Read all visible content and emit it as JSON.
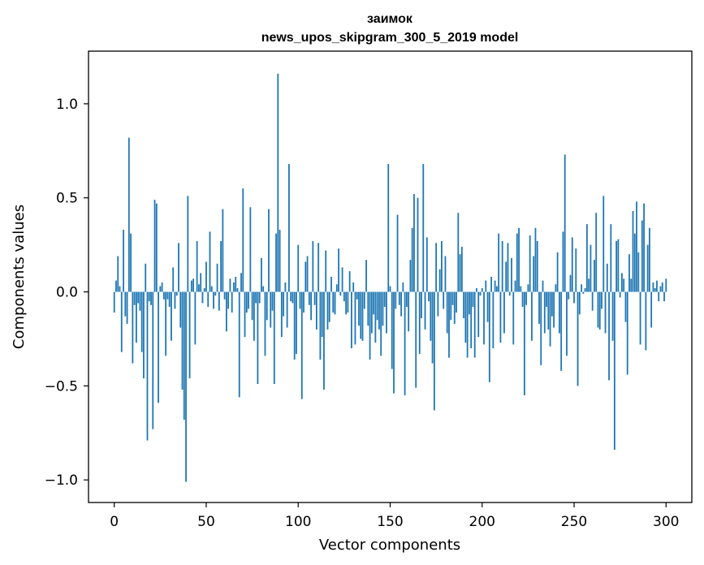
{
  "chart_data": {
    "type": "bar",
    "title": "заимок",
    "subtitle": "news_upos_skipgram_300_5_2019 model",
    "xlabel": "Vector components",
    "ylabel": "Components values",
    "xlim": [
      -14,
      314
    ],
    "ylim": [
      -1.12,
      1.28
    ],
    "xticks": [
      0,
      50,
      100,
      150,
      200,
      250,
      300
    ],
    "xtick_labels": [
      "0",
      "50",
      "100",
      "150",
      "200",
      "250",
      "300"
    ],
    "yticks": [
      -1.0,
      -0.5,
      0.0,
      0.5,
      1.0
    ],
    "ytick_labels": [
      "−1.0",
      "−0.5",
      "0.0",
      "0.5",
      "1.0"
    ],
    "bar_color": "#1f77b4",
    "grid": false,
    "series": [
      {
        "name": "components",
        "values": [
          -0.11,
          0.06,
          0.19,
          0.03,
          -0.32,
          0.33,
          -0.13,
          -0.17,
          0.82,
          0.31,
          -0.38,
          -0.07,
          -0.27,
          -0.06,
          -0.1,
          -0.32,
          -0.46,
          0.15,
          -0.79,
          -0.05,
          -0.07,
          -0.73,
          0.49,
          0.47,
          -0.59,
          0.03,
          0.05,
          -0.04,
          -0.34,
          -0.04,
          -0.08,
          -0.26,
          0.13,
          -0.09,
          -0.02,
          0.26,
          -0.19,
          -0.52,
          -0.68,
          -1.01,
          0.51,
          -0.46,
          0.06,
          0.07,
          -0.28,
          0.27,
          0.04,
          0.1,
          -0.06,
          0.02,
          0.16,
          -0.08,
          0.32,
          0.03,
          -0.09,
          -0.02,
          0.15,
          -0.1,
          0.27,
          0.44,
          -0.04,
          -0.21,
          -0.09,
          0.07,
          -0.11,
          0.05,
          0.08,
          0.02,
          -0.56,
          0.1,
          0.55,
          -0.24,
          -0.11,
          -0.09,
          0.45,
          -0.15,
          -0.26,
          -0.06,
          -0.49,
          -0.06,
          0.18,
          0.03,
          -0.34,
          -0.15,
          0.44,
          -0.19,
          -0.1,
          -0.49,
          0.31,
          1.16,
          0.33,
          -0.24,
          -0.13,
          0.05,
          -0.19,
          0.68,
          -0.05,
          -0.06,
          -0.36,
          -0.33,
          0.25,
          -0.09,
          -0.57,
          -0.11,
          0.16,
          0.19,
          -0.07,
          -0.15,
          0.27,
          -0.07,
          -0.2,
          0.26,
          -0.36,
          -0.24,
          -0.52,
          0.22,
          -0.2,
          -0.16,
          0.08,
          -0.11,
          -0.12,
          0.04,
          0.23,
          -0.02,
          0.13,
          -0.05,
          -0.12,
          -0.11,
          0.11,
          -0.3,
          0.05,
          -0.28,
          -0.04,
          -0.18,
          -0.25,
          -0.26,
          -0.09,
          0.17,
          -0.18,
          -0.36,
          -0.22,
          -0.12,
          -0.27,
          -0.15,
          -0.2,
          -0.34,
          -0.18,
          -0.08,
          -0.22,
          0.68,
          0.03,
          -0.41,
          -0.54,
          -0.09,
          0.41,
          -0.07,
          -0.13,
          0.05,
          -0.55,
          -0.08,
          -0.21,
          0.17,
          0.34,
          0.52,
          -0.51,
          0.5,
          -0.33,
          -0.14,
          0.68,
          -0.2,
          0.29,
          -0.05,
          -0.26,
          -0.38,
          -0.63,
          0.26,
          -0.13,
          0.12,
          0.27,
          -0.09,
          0.19,
          -0.22,
          -0.35,
          -0.15,
          -0.07,
          -0.17,
          -0.11,
          0.42,
          0.2,
          0.24,
          -0.14,
          -0.27,
          -0.35,
          -0.12,
          -0.3,
          -0.08,
          -0.35,
          0.02,
          -0.24,
          -0.02,
          0.02,
          -0.28,
          0.06,
          -0.16,
          -0.48,
          0.08,
          -0.3,
          0.06,
          0.03,
          0.31,
          -0.27,
          0.27,
          -0.22,
          0.16,
          0.26,
          -0.02,
          0.18,
          -0.28,
          0.06,
          0.31,
          0.34,
          0.03,
          -0.08,
          -0.55,
          -0.07,
          0.04,
          0.3,
          -0.26,
          0.19,
          0.34,
          0.27,
          -0.17,
          -0.39,
          0.06,
          -0.22,
          -0.08,
          -0.2,
          -0.29,
          -0.13,
          -0.19,
          0.04,
          0.21,
          -0.22,
          -0.42,
          0.32,
          0.73,
          -0.34,
          -0.04,
          0.09,
          0.29,
          -0.06,
          0.23,
          -0.5,
          -0.12,
          0.04,
          -0.01,
          0.02,
          0.36,
          0.07,
          0.25,
          -0.1,
          0.17,
          0.42,
          -0.19,
          -0.2,
          -0.09,
          0.51,
          -0.22,
          0.15,
          -0.47,
          0.36,
          -0.26,
          -0.84,
          0.27,
          0.28,
          -0.03,
          0.1,
          0.07,
          -0.16,
          -0.44,
          0.2,
          0.07,
          0.43,
          0.31,
          0.48,
          0.21,
          -0.28,
          0.38,
          0.47,
          -0.31,
          0.25,
          0.34,
          -0.19,
          0.05,
          0.02,
          0.06,
          -0.05,
          0.03,
          0.05,
          -0.05,
          0.07
        ]
      }
    ]
  }
}
